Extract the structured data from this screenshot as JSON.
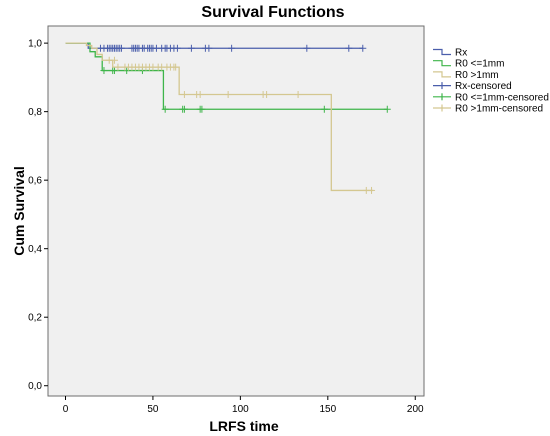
{
  "chart_data": {
    "type": "line",
    "title": "Survival Functions",
    "xlabel": "LRFS time",
    "ylabel": "Cum Survival",
    "xlim": [
      -10,
      205
    ],
    "ylim": [
      -0.03,
      1.05
    ],
    "x_ticks": [
      0,
      50,
      100,
      150,
      200
    ],
    "x_tick_labels": [
      "0",
      "50",
      "100",
      "150",
      "200"
    ],
    "y_ticks": [
      0.0,
      0.2,
      0.4,
      0.6,
      0.8,
      1.0
    ],
    "y_tick_labels": [
      "0,0",
      "0,2",
      "0,4",
      "0,6",
      "0,8",
      "1,0"
    ],
    "grid": false,
    "legend_position": "right",
    "legend": [
      {
        "label": "Rx",
        "kind": "line",
        "color": "#4a5eab"
      },
      {
        "label": "R0 <=1mm",
        "kind": "line",
        "color": "#3eb54a"
      },
      {
        "label": "R0 >1mm",
        "kind": "line",
        "color": "#d4c790"
      },
      {
        "label": "Rx-censored",
        "kind": "censor",
        "color": "#4a5eab"
      },
      {
        "label": "R0 <=1mm-censored",
        "kind": "censor",
        "color": "#3eb54a"
      },
      {
        "label": "R0 >1mm-censored",
        "kind": "censor",
        "color": "#d4c790"
      }
    ],
    "series": [
      {
        "name": "Rx",
        "color": "#4a5eab",
        "steps": [
          [
            0,
            1.0
          ],
          [
            13,
            1.0
          ],
          [
            13,
            0.985
          ],
          [
            170,
            0.985
          ]
        ],
        "censored": [
          [
            20,
            0.985
          ],
          [
            22,
            0.985
          ],
          [
            24,
            0.985
          ],
          [
            25,
            0.985
          ],
          [
            26,
            0.985
          ],
          [
            27,
            0.985
          ],
          [
            28,
            0.985
          ],
          [
            29,
            0.985
          ],
          [
            30,
            0.985
          ],
          [
            31,
            0.985
          ],
          [
            32,
            0.985
          ],
          [
            38,
            0.985
          ],
          [
            39,
            0.985
          ],
          [
            40,
            0.985
          ],
          [
            41,
            0.985
          ],
          [
            42,
            0.985
          ],
          [
            44,
            0.985
          ],
          [
            45,
            0.985
          ],
          [
            47,
            0.985
          ],
          [
            48,
            0.985
          ],
          [
            49,
            0.985
          ],
          [
            50,
            0.985
          ],
          [
            52,
            0.985
          ],
          [
            55,
            0.985
          ],
          [
            57,
            0.985
          ],
          [
            58,
            0.985
          ],
          [
            60,
            0.985
          ],
          [
            62,
            0.985
          ],
          [
            64,
            0.985
          ],
          [
            72,
            0.985
          ],
          [
            80,
            0.985
          ],
          [
            82,
            0.985
          ],
          [
            95,
            0.985
          ],
          [
            138,
            0.985
          ],
          [
            162,
            0.985
          ],
          [
            170,
            0.985
          ]
        ]
      },
      {
        "name": "R0 <=1mm",
        "color": "#3eb54a",
        "steps": [
          [
            0,
            1.0
          ],
          [
            14,
            1.0
          ],
          [
            14,
            0.975
          ],
          [
            17,
            0.975
          ],
          [
            17,
            0.96
          ],
          [
            21,
            0.96
          ],
          [
            21,
            0.92
          ],
          [
            56,
            0.92
          ],
          [
            56,
            0.807
          ],
          [
            184,
            0.807
          ]
        ],
        "censored": [
          [
            22,
            0.92
          ],
          [
            27,
            0.92
          ],
          [
            28,
            0.92
          ],
          [
            35,
            0.92
          ],
          [
            44,
            0.92
          ],
          [
            57,
            0.807
          ],
          [
            67,
            0.807
          ],
          [
            68,
            0.807
          ],
          [
            77,
            0.807
          ],
          [
            78,
            0.807
          ],
          [
            148,
            0.807
          ],
          [
            184,
            0.807
          ]
        ]
      },
      {
        "name": "R0 >1mm",
        "color": "#d4c790",
        "steps": [
          [
            0,
            1.0
          ],
          [
            12,
            1.0
          ],
          [
            12,
            0.993
          ],
          [
            15,
            0.993
          ],
          [
            15,
            0.985
          ],
          [
            18,
            0.985
          ],
          [
            18,
            0.967
          ],
          [
            21,
            0.967
          ],
          [
            21,
            0.95
          ],
          [
            27,
            0.95
          ],
          [
            27,
            0.93
          ],
          [
            65,
            0.93
          ],
          [
            65,
            0.85
          ],
          [
            152,
            0.85
          ],
          [
            152,
            0.57
          ],
          [
            176,
            0.57
          ]
        ],
        "censored": [
          [
            25,
            0.95
          ],
          [
            28,
            0.95
          ],
          [
            30,
            0.93
          ],
          [
            34,
            0.93
          ],
          [
            36,
            0.93
          ],
          [
            38,
            0.93
          ],
          [
            40,
            0.93
          ],
          [
            42,
            0.93
          ],
          [
            44,
            0.93
          ],
          [
            46,
            0.93
          ],
          [
            48,
            0.93
          ],
          [
            50,
            0.93
          ],
          [
            53,
            0.93
          ],
          [
            55,
            0.93
          ],
          [
            58,
            0.93
          ],
          [
            60,
            0.93
          ],
          [
            62,
            0.93
          ],
          [
            63,
            0.93
          ],
          [
            68,
            0.85
          ],
          [
            75,
            0.85
          ],
          [
            77,
            0.85
          ],
          [
            93,
            0.85
          ],
          [
            113,
            0.85
          ],
          [
            115,
            0.85
          ],
          [
            133,
            0.85
          ],
          [
            172,
            0.57
          ],
          [
            175,
            0.57
          ]
        ]
      }
    ]
  }
}
